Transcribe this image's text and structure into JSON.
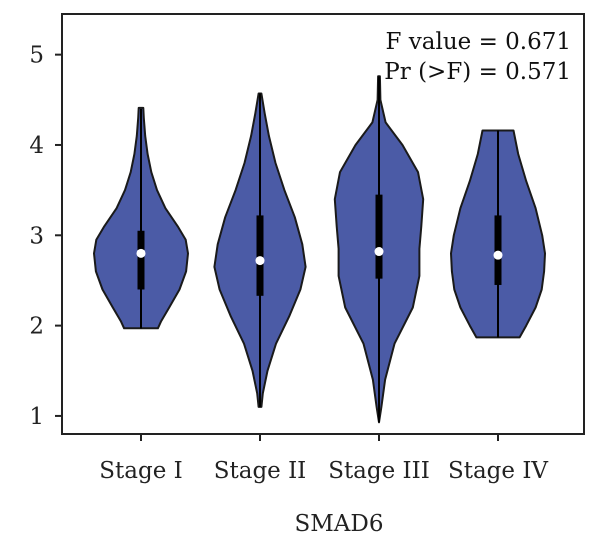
{
  "chart_data": {
    "type": "violin",
    "title": "",
    "xlabel": "SMAD6",
    "ylabel": "",
    "ylim": [
      0.8,
      5.45
    ],
    "yticks": [
      1,
      2,
      3,
      4,
      5
    ],
    "grid": false,
    "fill_color": "#4B5BA6",
    "categories": [
      "Stage I",
      "Stage II",
      "Stage III",
      "Stage IV"
    ],
    "annotations": [
      "F value = 0.671",
      "Pr (>F) = 0.571"
    ],
    "violins": [
      {
        "category": "Stage I",
        "min": 1.97,
        "max": 4.41,
        "q1": 2.4,
        "median": 2.8,
        "q3": 3.05,
        "whisker_low": 1.97,
        "whisker_high": 4.4,
        "density": [
          [
            1.97,
            0.36
          ],
          [
            2.05,
            0.43
          ],
          [
            2.2,
            0.6
          ],
          [
            2.4,
            0.82
          ],
          [
            2.6,
            0.96
          ],
          [
            2.8,
            1.0
          ],
          [
            2.95,
            0.95
          ],
          [
            3.1,
            0.78
          ],
          [
            3.3,
            0.52
          ],
          [
            3.5,
            0.34
          ],
          [
            3.7,
            0.22
          ],
          [
            3.9,
            0.14
          ],
          [
            4.1,
            0.09
          ],
          [
            4.3,
            0.06
          ],
          [
            4.41,
            0.05
          ]
        ]
      },
      {
        "category": "Stage II",
        "min": 1.1,
        "max": 4.57,
        "q1": 2.33,
        "median": 2.72,
        "q3": 3.22,
        "whisker_low": 1.1,
        "whisker_high": 4.57,
        "density": [
          [
            1.1,
            0.03
          ],
          [
            1.25,
            0.06
          ],
          [
            1.5,
            0.16
          ],
          [
            1.8,
            0.34
          ],
          [
            2.1,
            0.62
          ],
          [
            2.4,
            0.86
          ],
          [
            2.65,
            0.97
          ],
          [
            2.9,
            0.9
          ],
          [
            3.2,
            0.74
          ],
          [
            3.5,
            0.52
          ],
          [
            3.8,
            0.33
          ],
          [
            4.1,
            0.19
          ],
          [
            4.35,
            0.1
          ],
          [
            4.57,
            0.03
          ]
        ]
      },
      {
        "category": "Stage III",
        "min": 0.93,
        "max": 4.76,
        "q1": 2.52,
        "median": 2.82,
        "q3": 3.45,
        "whisker_low": 0.93,
        "whisker_high": 4.76,
        "density": [
          [
            0.93,
            0.0
          ],
          [
            1.1,
            0.05
          ],
          [
            1.4,
            0.13
          ],
          [
            1.8,
            0.33
          ],
          [
            2.2,
            0.72
          ],
          [
            2.55,
            0.86
          ],
          [
            2.85,
            0.86
          ],
          [
            3.1,
            0.9
          ],
          [
            3.4,
            0.94
          ],
          [
            3.7,
            0.83
          ],
          [
            4.0,
            0.5
          ],
          [
            4.25,
            0.14
          ],
          [
            4.5,
            0.03
          ],
          [
            4.76,
            0.02
          ]
        ]
      },
      {
        "category": "Stage IV",
        "min": 1.87,
        "max": 4.16,
        "q1": 2.45,
        "median": 2.78,
        "q3": 3.22,
        "whisker_low": 1.87,
        "whisker_high": 4.16,
        "density": [
          [
            1.87,
            0.46
          ],
          [
            2.0,
            0.6
          ],
          [
            2.2,
            0.8
          ],
          [
            2.4,
            0.93
          ],
          [
            2.6,
            0.98
          ],
          [
            2.8,
            1.0
          ],
          [
            3.0,
            0.94
          ],
          [
            3.3,
            0.8
          ],
          [
            3.6,
            0.6
          ],
          [
            3.9,
            0.43
          ],
          [
            4.16,
            0.33
          ]
        ]
      }
    ]
  }
}
